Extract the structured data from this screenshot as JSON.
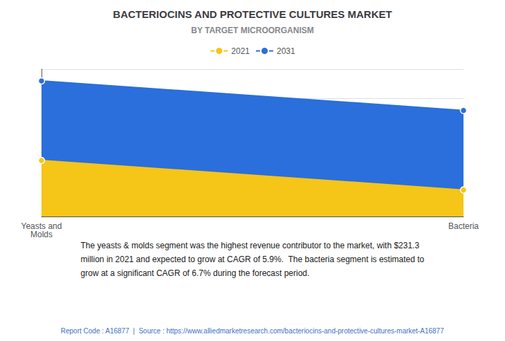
{
  "chart_data": {
    "type": "area",
    "title": "BACTERIOCINS AND PROTECTIVE CULTURES MARKET",
    "subtitle": "BY TARGET MICROORGANISM",
    "categories": [
      "Yeasts and\nMolds",
      "Bacteria"
    ],
    "series": [
      {
        "name": "2021",
        "color": "#F5C518",
        "values": [
          0.38,
          0.18
        ]
      },
      {
        "name": "2031",
        "color": "#2A6FDB",
        "values": [
          0.92,
          0.72
        ]
      }
    ],
    "ylim": [
      0,
      1
    ],
    "yticks": [
      0,
      0.2,
      0.4,
      0.6,
      0.8,
      1
    ],
    "grid": true,
    "legend": "top",
    "tick_labels": "x",
    "annotations": [
      "The yeasts & molds segment was the highest revenue contributor to the market, with $231.3\nmillion in 2021 and expected to grow at CAGR of 5.9%.  The bacteria segment is estimated to\ngrow at a significant CAGR of 6.7% during the forecast period.",
      "Report Code : A16877  |  Source : https://www.alliedmarketresearch.com/bacteriocins-and-protective-cultures-market-A16877"
    ]
  }
}
